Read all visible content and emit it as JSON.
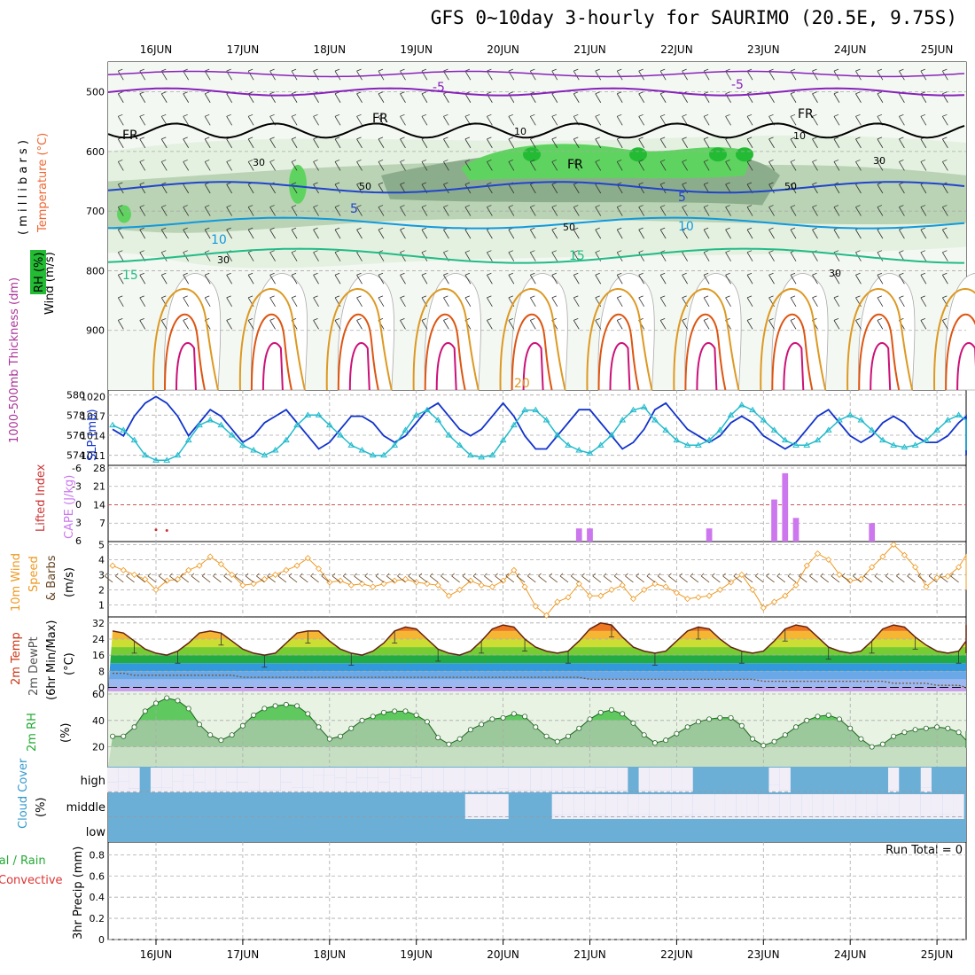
{
  "title": "GFS 0~10day 3-hourly for SAURIMO (20.5E, 9.75S)",
  "run_total": "Run Total = 0",
  "colors": {
    "rh_light": "#e4f1e0",
    "rh_mid": "#b9d3b4",
    "rh_dark": "#8cad8c",
    "rh_green": "#5fd35f",
    "t_purple": "#8822bb",
    "t_blue": "#2244cc",
    "t_sky": "#1199dd",
    "t_teal": "#22bb88",
    "t_orange": "#dd9922",
    "t_red": "#dd5511",
    "t_magenta": "#cc1177",
    "slp": "#1133cc",
    "thick": "#22bbcc",
    "cape": "#cc77ee",
    "li": "#cc3333",
    "wind": "#ee9922",
    "cloud_bg": "#6baed6",
    "cloud_gap": "#f2eef8"
  },
  "chart_data": [
    {
      "type": "heatmap",
      "name": "cross-section",
      "y_axis_label": "( m i l l i b a r s )",
      "y_ticks": [
        500,
        600,
        700,
        800,
        900
      ],
      "ylim": [
        1000,
        450
      ],
      "dates": [
        "16JUN",
        "17JUN",
        "18JUN",
        "19JUN",
        "20JUN",
        "21JUN",
        "22JUN",
        "23JUN",
        "24JUN",
        "25JUN"
      ],
      "left_labels": {
        "wind": "Wind (m/s)",
        "temperature": "Temperature (°C)",
        "rh": "RH (%)"
      },
      "rh_labels": [
        "10",
        "30",
        "50",
        "50",
        "30",
        "10",
        "30",
        "50",
        "30"
      ],
      "isotherm_labels": [
        {
          "text": "-5",
          "level": -5
        },
        {
          "text": "-5",
          "level": -5
        },
        {
          "text": "FR",
          "level": 0
        },
        {
          "text": "FR",
          "level": 0
        },
        {
          "text": "FR",
          "level": 0
        },
        {
          "text": "FR",
          "level": 0
        },
        {
          "text": "5",
          "level": 5
        },
        {
          "text": "5",
          "level": 5
        },
        {
          "text": "10",
          "level": 10
        },
        {
          "text": "10",
          "level": 10
        },
        {
          "text": "15",
          "level": 15
        },
        {
          "text": "15",
          "level": 15
        },
        {
          "text": "20",
          "level": 20
        }
      ]
    },
    {
      "type": "line",
      "name": "slp-thickness",
      "labels": {
        "left": "1000-500mb Thickness (dm)",
        "right": "SLP (mb)"
      },
      "y_left_ticks": [
        574,
        576,
        578,
        580
      ],
      "y_right_ticks": [
        1011,
        1014,
        1017,
        1020
      ],
      "ylim_left": [
        573,
        580.5
      ],
      "ylim_right": [
        1009.5,
        1021
      ],
      "series": [
        {
          "name": "SLP (mb)",
          "values": [
            1015,
            1014,
            1017,
            1019,
            1020,
            1019,
            1017,
            1014,
            1016,
            1018,
            1017,
            1015,
            1013,
            1014,
            1016,
            1017,
            1018,
            1016,
            1014,
            1012,
            1013,
            1015,
            1017,
            1017,
            1016,
            1014,
            1013,
            1014,
            1016,
            1018,
            1019,
            1017,
            1015,
            1014,
            1015,
            1017,
            1019,
            1017,
            1014,
            1012,
            1012,
            1014,
            1016,
            1018,
            1018,
            1016,
            1014,
            1012,
            1013,
            1015,
            1018,
            1019,
            1017,
            1015,
            1014,
            1013,
            1014,
            1016,
            1017,
            1016,
            1014,
            1013,
            1012,
            1013,
            1015,
            1017,
            1018,
            1016,
            1014,
            1013,
            1014,
            1016,
            1017,
            1016,
            1014,
            1013,
            1013,
            1014,
            1016,
            1017,
            1015,
            1013,
            1011,
            1012,
            1014,
            1016,
            1016
          ]
        },
        {
          "name": "1000-500mb Thickness (dm)",
          "values": [
            577,
            576.5,
            575.5,
            574,
            573.5,
            573.5,
            574,
            575.5,
            577,
            577.5,
            577,
            576,
            575,
            574.5,
            574,
            574.5,
            575.5,
            577,
            578,
            578,
            577,
            576,
            575,
            574.5,
            574,
            574,
            575,
            576.5,
            578,
            578.5,
            577.5,
            576,
            575,
            574,
            573.8,
            574,
            575.5,
            577,
            578.5,
            578.5,
            577.5,
            576,
            575,
            574.5,
            574.2,
            575,
            576,
            577.5,
            578.5,
            578.8,
            577.5,
            576.5,
            575.5,
            575,
            575,
            575.5,
            576.5,
            578,
            579,
            578.5,
            577.5,
            576.5,
            575.5,
            575,
            575,
            575.5,
            576.5,
            577.5,
            578,
            577.5,
            576.5,
            575.5,
            575,
            574.8,
            575,
            575.5,
            576.5,
            577.5,
            578,
            577.5,
            576.5,
            575.5,
            575,
            574.5,
            574.5,
            575.5,
            576.5
          ]
        }
      ]
    },
    {
      "type": "bar",
      "name": "cape-lifted-index",
      "labels": {
        "left": "Lifted Index",
        "right": "CAPE (J/kg)"
      },
      "y_left_ticks": [
        6,
        3,
        0,
        -3,
        -6
      ],
      "y_right_ticks": [
        7,
        14,
        21,
        28
      ],
      "ylim_right": [
        0,
        29
      ],
      "series": [
        {
          "name": "CAPE (J/kg)",
          "values": [
            0,
            0,
            0,
            0,
            0,
            0,
            0,
            0,
            0,
            0,
            0,
            0,
            0,
            0,
            0,
            0,
            0,
            0,
            0,
            0,
            0,
            0,
            0,
            0,
            0,
            0,
            0,
            0,
            0,
            0,
            0,
            0,
            0,
            0,
            0,
            0,
            0,
            0,
            0,
            0,
            0,
            0,
            0,
            5,
            5,
            0,
            0,
            0,
            0,
            0,
            0,
            0,
            0,
            0,
            0,
            5,
            0,
            0,
            0,
            0,
            0,
            16,
            26,
            9,
            0,
            0,
            0,
            0,
            0,
            0,
            7,
            0,
            0,
            0,
            0,
            0,
            0,
            0,
            0,
            0,
            0,
            0,
            0,
            0,
            0,
            0,
            0
          ]
        }
      ],
      "li_points": [
        {
          "idx": 0,
          "value": 6.8
        },
        {
          "idx": 1,
          "value": 7.5
        }
      ]
    },
    {
      "type": "line",
      "name": "wind-10m",
      "labels": {
        "left1": "10m Wind",
        "left2": "Speed",
        "left3": "& Barbs",
        "unit": "(m/s)"
      },
      "y_ticks": [
        1,
        2,
        3,
        4,
        5
      ],
      "ylim": [
        0.2,
        5.2
      ],
      "series": [
        {
          "name": "10m Wind Speed",
          "values": [
            3.6,
            3.3,
            3.0,
            2.7,
            2.0,
            2.6,
            2.7,
            3.3,
            3.6,
            4.2,
            3.7,
            3.0,
            2.3,
            2.4,
            2.7,
            3.0,
            3.3,
            3.6,
            4.1,
            3.4,
            2.5,
            2.6,
            2.3,
            2.4,
            2.2,
            2.4,
            2.6,
            2.7,
            2.5,
            2.4,
            2.3,
            1.6,
            2.0,
            2.6,
            2.3,
            2.2,
            2.6,
            3.3,
            2.2,
            0.9,
            0.3,
            1.2,
            1.5,
            2.4,
            1.6,
            1.6,
            2.0,
            2.3,
            1.4,
            2.0,
            2.4,
            2.2,
            1.8,
            1.4,
            1.5,
            1.6,
            2.0,
            2.5,
            3.0,
            2.0,
            0.8,
            1.2,
            1.6,
            2.3,
            3.6,
            4.4,
            4.0,
            3.0,
            2.6,
            2.7,
            3.5,
            4.2,
            5.0,
            4.3,
            3.5,
            2.2,
            2.8,
            2.9,
            3.5,
            4.3,
            3.2,
            2.3,
            2.0,
            2.6,
            2.7,
            2.3,
            2.7
          ]
        }
      ]
    },
    {
      "type": "area",
      "name": "temperature-2m",
      "labels": {
        "left1": "2m Temp",
        "left2": "2m DewPt",
        "left3": "(6hr Min/Max)",
        "unit": "(°C)"
      },
      "y_ticks": [
        0,
        8,
        16,
        24,
        32
      ],
      "ylim": [
        -2,
        35
      ],
      "series": [
        {
          "name": "2m Temp",
          "values": [
            28,
            27,
            23,
            19,
            17,
            16,
            18,
            22,
            27,
            28,
            27,
            23,
            19,
            17,
            16,
            17,
            22,
            27,
            28,
            28,
            23,
            19,
            17,
            16,
            18,
            22,
            28,
            30,
            29,
            24,
            19,
            17,
            16,
            18,
            23,
            29,
            31,
            30,
            24,
            20,
            18,
            17,
            18,
            23,
            29,
            32,
            31,
            25,
            20,
            18,
            17,
            18,
            23,
            28,
            30,
            29,
            24,
            20,
            18,
            17,
            18,
            23,
            29,
            31,
            30,
            25,
            20,
            18,
            17,
            18,
            23,
            29,
            31,
            30,
            25,
            21,
            18,
            17,
            18,
            23,
            29,
            31,
            30,
            25,
            20,
            18,
            17
          ]
        },
        {
          "name": "2m DewPt",
          "values": [
            7,
            7,
            6,
            6,
            6,
            6,
            6,
            6,
            6,
            6,
            6,
            6,
            5,
            5,
            5,
            5,
            5,
            5,
            5,
            5,
            5,
            5,
            5,
            5,
            5,
            5,
            5,
            5,
            5,
            5,
            5,
            5,
            5,
            5,
            5,
            5,
            5,
            5,
            5,
            5,
            5,
            5,
            5,
            5,
            4,
            4,
            4,
            4,
            4,
            4,
            4,
            4,
            4,
            4,
            4,
            4,
            4,
            4,
            4,
            4,
            3,
            3,
            3,
            3,
            3,
            3,
            3,
            3,
            3,
            3,
            3,
            3,
            2,
            2,
            2,
            2,
            1,
            1,
            1,
            0,
            0,
            -1,
            -1,
            -1,
            -1,
            -1,
            -1
          ]
        }
      ]
    },
    {
      "type": "area",
      "name": "rh-2m",
      "labels": {
        "left": "2m RH",
        "unit": "(%)"
      },
      "y_ticks": [
        20,
        40,
        60
      ],
      "ylim": [
        5,
        62
      ],
      "series": [
        {
          "name": "2m RH",
          "values": [
            28,
            28,
            35,
            47,
            53,
            57,
            55,
            49,
            37,
            29,
            25,
            29,
            36,
            44,
            49,
            51,
            52,
            51,
            45,
            35,
            26,
            28,
            34,
            40,
            43,
            46,
            47,
            47,
            44,
            39,
            27,
            22,
            26,
            33,
            37,
            41,
            42,
            45,
            43,
            35,
            28,
            24,
            28,
            34,
            41,
            46,
            48,
            45,
            38,
            29,
            23,
            25,
            30,
            35,
            39,
            41,
            42,
            42,
            36,
            26,
            21,
            24,
            29,
            35,
            40,
            43,
            44,
            41,
            34,
            26,
            20,
            22,
            28,
            31,
            33,
            34,
            35,
            34,
            31,
            25,
            19,
            20,
            24,
            30,
            31,
            32,
            32
          ]
        }
      ]
    },
    {
      "type": "bar",
      "name": "cloud-cover",
      "labels": {
        "left": "Cloud Cover",
        "unit": "(%)"
      },
      "layers": [
        "high",
        "middle",
        "low"
      ],
      "series": [
        {
          "name": "high",
          "values": [
            40,
            45,
            15,
            0,
            20,
            20,
            45,
            70,
            40,
            10,
            10,
            40,
            40,
            10,
            10,
            10,
            40,
            20,
            20,
            70,
            70,
            60,
            40,
            60,
            60,
            40,
            55,
            70,
            60,
            10,
            10,
            10,
            10,
            10,
            10,
            10,
            15,
            10,
            10,
            10,
            10,
            10,
            20,
            20,
            10,
            20,
            10,
            10,
            0,
            10,
            10,
            10,
            10,
            10,
            0,
            0,
            0,
            0,
            0,
            0,
            0,
            30,
            10,
            0,
            0,
            0,
            0,
            0,
            0,
            0,
            0,
            0,
            10,
            0,
            0,
            20,
            0,
            0,
            0,
            0,
            0,
            0,
            10,
            0,
            0,
            0,
            0
          ]
        },
        {
          "name": "middle",
          "values": [
            0,
            0,
            0,
            0,
            0,
            0,
            0,
            0,
            0,
            0,
            0,
            0,
            0,
            0,
            0,
            0,
            0,
            0,
            0,
            0,
            0,
            0,
            0,
            0,
            0,
            0,
            0,
            0,
            0,
            0,
            0,
            0,
            0,
            10,
            10,
            10,
            10,
            0,
            0,
            0,
            0,
            15,
            20,
            20,
            20,
            15,
            10,
            10,
            15,
            20,
            20,
            10,
            10,
            15,
            20,
            10,
            10,
            10,
            10,
            10,
            10,
            10,
            10,
            10,
            10,
            10,
            10,
            10,
            10,
            10,
            20,
            20,
            10,
            10,
            10,
            10,
            20,
            20,
            10,
            0,
            0,
            0,
            0,
            0,
            0,
            0,
            0
          ]
        },
        {
          "name": "low",
          "values": [
            0,
            0,
            0,
            0,
            0,
            0,
            0,
            0,
            0,
            0,
            0,
            0,
            0,
            0,
            0,
            0,
            0,
            0,
            0,
            0,
            0,
            0,
            0,
            0,
            0,
            0,
            0,
            0,
            0,
            0,
            0,
            0,
            0,
            0,
            0,
            0,
            0,
            0,
            0,
            0,
            0,
            0,
            0,
            0,
            0,
            0,
            0,
            0,
            0,
            0,
            0,
            0,
            0,
            0,
            0,
            0,
            0,
            0,
            0,
            0,
            0,
            0,
            0,
            0,
            0,
            0,
            0,
            0,
            0,
            0,
            0,
            0,
            0,
            0,
            0,
            0,
            0,
            0,
            0,
            0,
            0,
            0,
            0,
            0,
            0,
            0,
            0
          ]
        }
      ]
    },
    {
      "type": "bar",
      "name": "precip",
      "labels": {
        "left1": "Total / Rain",
        "left2": "Convective",
        "left3": "3hr Precip (mm)"
      },
      "y_ticks": [
        0,
        0.2,
        0.4,
        0.6,
        0.8
      ],
      "ylim": [
        0,
        0.92
      ],
      "series": [
        {
          "name": "3hr Precip (mm)",
          "values": []
        }
      ]
    }
  ]
}
